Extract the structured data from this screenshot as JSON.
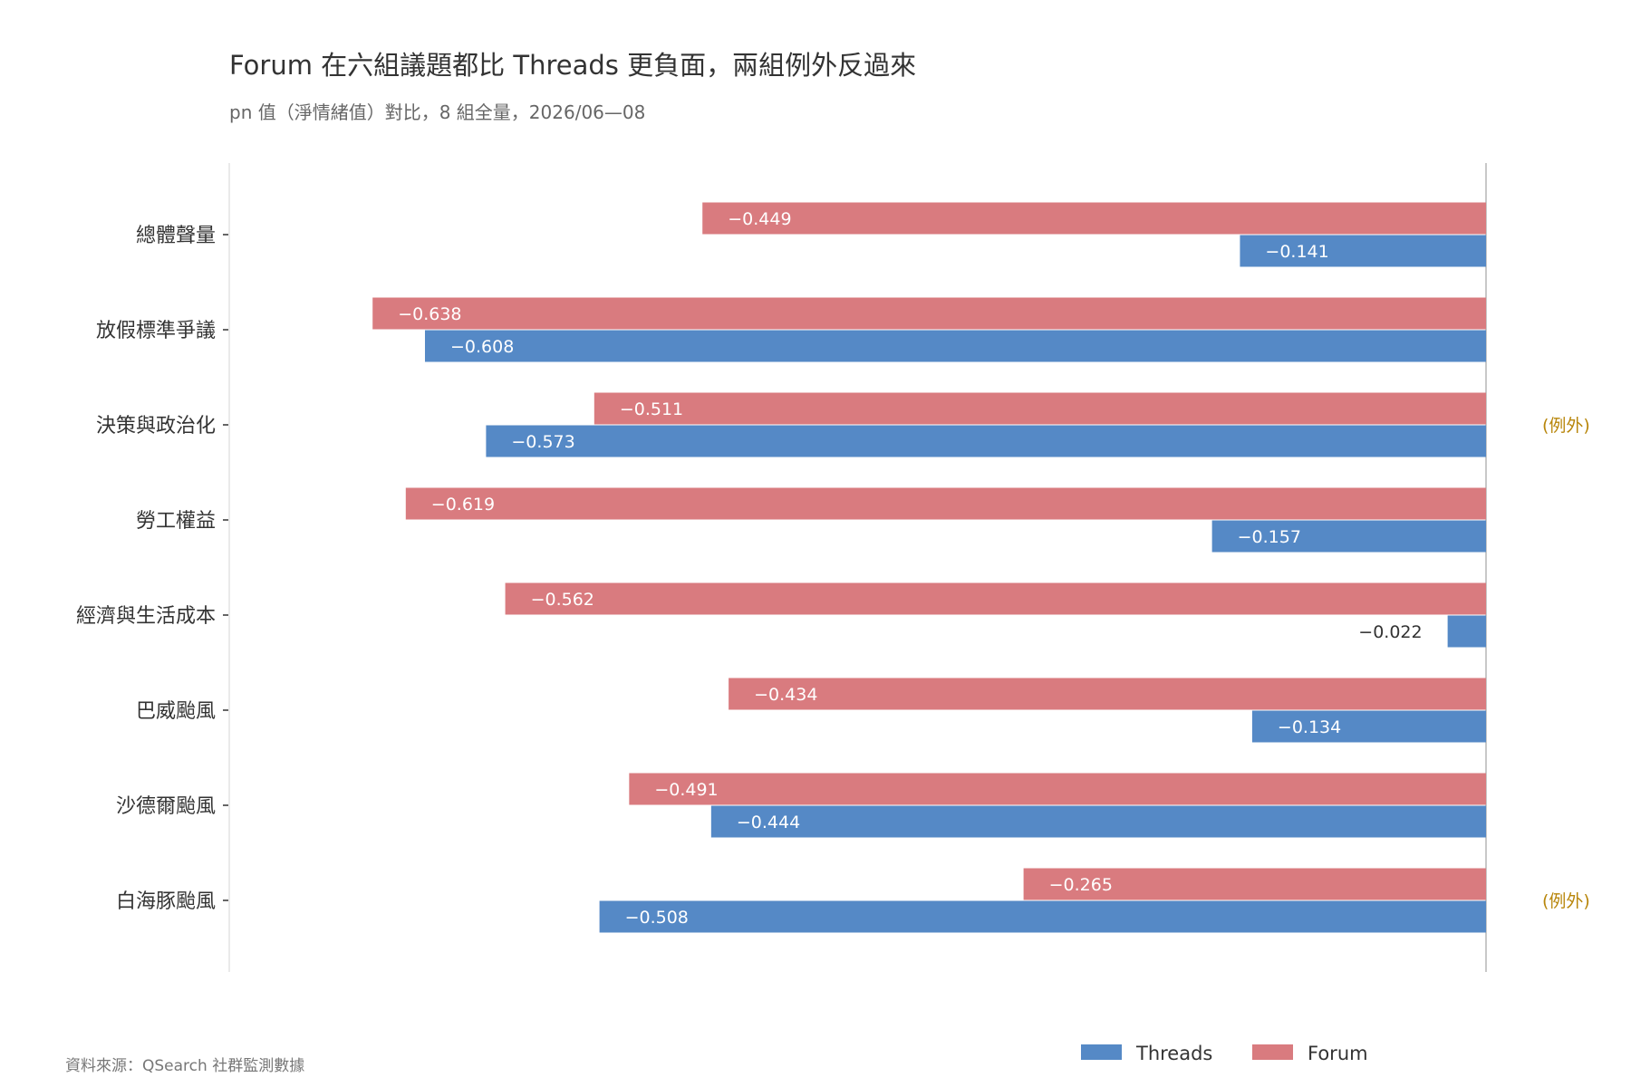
{
  "chart_data": {
    "type": "bar",
    "orientation": "horizontal",
    "title": "Forum 在六組議題都比 Threads 更負面，兩組例外反過來",
    "subtitle": "pn 值（淨情緒值）對比，8 組全量，2026/06—08",
    "source": "資料來源：QSearch 社群監測數據",
    "categories": [
      "總體聲量",
      "放假標準爭議",
      "決策與政治化",
      "勞工權益",
      "經濟與生活成本",
      "巴威颱風",
      "沙德爾颱風",
      "白海豚颱風"
    ],
    "series": [
      {
        "name": "Forum",
        "color": "#d97b7f",
        "values": [
          -0.449,
          -0.638,
          -0.511,
          -0.619,
          -0.562,
          -0.434,
          -0.491,
          -0.265
        ],
        "labels": [
          "−0.449",
          "−0.638",
          "−0.511",
          "−0.619",
          "−0.562",
          "−0.434",
          "−0.491",
          "−0.265"
        ]
      },
      {
        "name": "Threads",
        "color": "#5589c6",
        "values": [
          -0.141,
          -0.608,
          -0.573,
          -0.157,
          -0.022,
          -0.134,
          -0.444,
          -0.508
        ],
        "labels": [
          "−0.141",
          "−0.608",
          "−0.573",
          "−0.157",
          "−0.022",
          "−0.134",
          "−0.444",
          "−0.508"
        ]
      }
    ],
    "annotations": [
      {
        "category": "決策與政治化",
        "text": "(例外)"
      },
      {
        "category": "白海豚颱風",
        "text": "(例外)"
      }
    ],
    "annotation_color": "#b8860b",
    "xlim": [
      -0.72,
      0
    ],
    "legend": {
      "position": "bottom-right",
      "order": [
        "Threads",
        "Forum"
      ]
    },
    "grid": false
  }
}
